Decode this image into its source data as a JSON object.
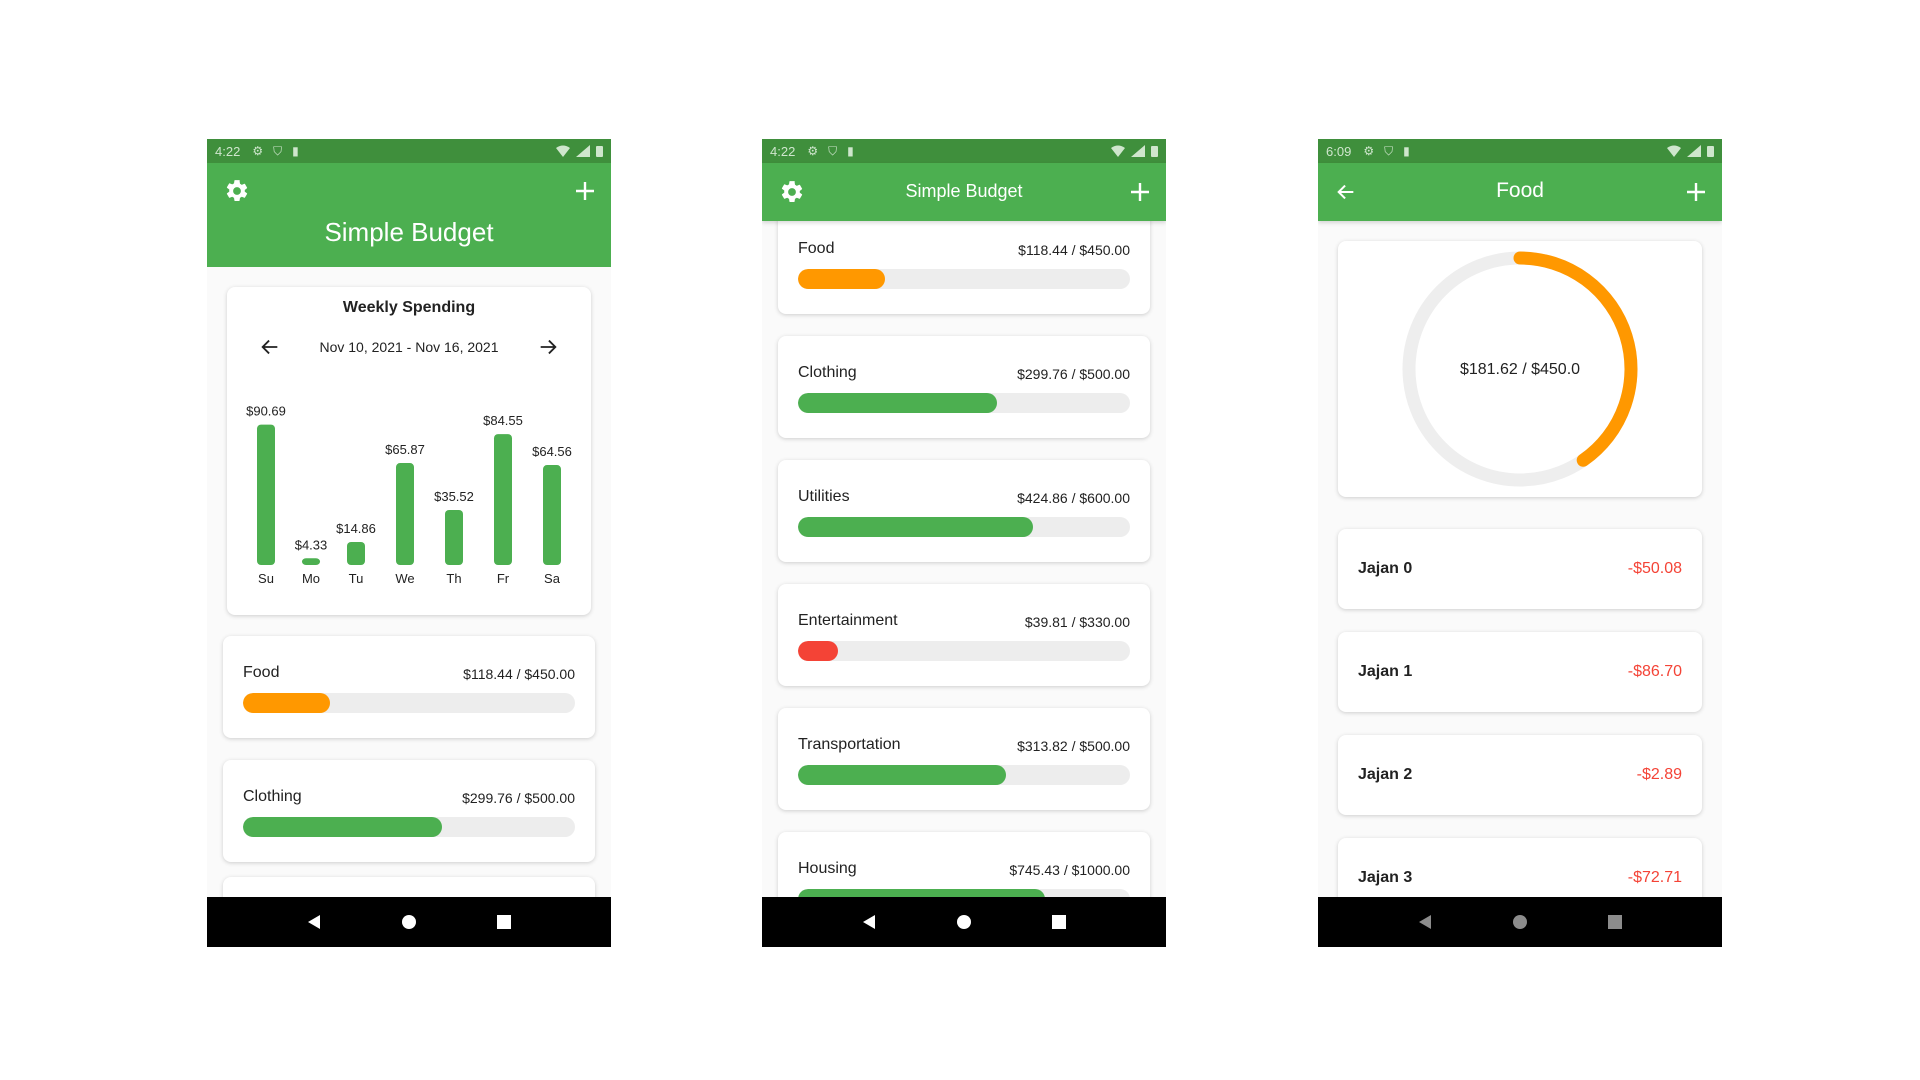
{
  "colors": {
    "green": "#4caf50",
    "status_green": "#3f8f3c",
    "orange": "#ff9800",
    "red": "#f44336",
    "track": "#ededed"
  },
  "screens": [
    {
      "status": {
        "time": "4:22"
      },
      "appbar": {
        "title": "Simple Budget",
        "left_icon": "gear-icon",
        "right_icon": "plus-icon"
      },
      "weekly": {
        "title": "Weekly Spending",
        "range": "Nov 10, 2021 - Nov 16, 2021",
        "chart_data": {
          "type": "bar",
          "categories": [
            "Su",
            "Mo",
            "Tu",
            "We",
            "Th",
            "Fr",
            "Sa"
          ],
          "values": [
            90.69,
            4.33,
            14.86,
            65.87,
            35.52,
            84.55,
            64.56
          ],
          "labels": [
            "$90.69",
            "$4.33",
            "$14.86",
            "$65.87",
            "$35.52",
            "$84.55",
            "$64.56"
          ],
          "ylim": [
            0,
            100
          ]
        }
      },
      "budgets": [
        {
          "name": "Food",
          "amount": "$118.44 / $450.00",
          "progress": 0.263,
          "color": "#ff9800"
        },
        {
          "name": "Clothing",
          "amount": "$299.76 / $500.00",
          "progress": 0.6,
          "color": "#4caf50"
        }
      ]
    },
    {
      "status": {
        "time": "4:22"
      },
      "appbar": {
        "title": "Simple Budget",
        "left_icon": "gear-icon",
        "right_icon": "plus-icon"
      },
      "budgets": [
        {
          "name": "Food",
          "amount": "$118.44 / $450.00",
          "progress": 0.263,
          "color": "#ff9800"
        },
        {
          "name": "Clothing",
          "amount": "$299.76 / $500.00",
          "progress": 0.6,
          "color": "#4caf50"
        },
        {
          "name": "Utilities",
          "amount": "$424.86 / $600.00",
          "progress": 0.708,
          "color": "#4caf50"
        },
        {
          "name": "Entertainment",
          "amount": "$39.81 / $330.00",
          "progress": 0.121,
          "color": "#f44336"
        },
        {
          "name": "Transportation",
          "amount": "$313.82 / $500.00",
          "progress": 0.628,
          "color": "#4caf50"
        },
        {
          "name": "Housing",
          "amount": "$745.43 / $1000.00",
          "progress": 0.745,
          "color": "#4caf50"
        }
      ]
    },
    {
      "status": {
        "time": "6:09"
      },
      "appbar": {
        "title": "Food",
        "left_icon": "back-arrow-icon",
        "right_icon": "plus-icon"
      },
      "donut": {
        "label": "$181.62 / $450.0",
        "progress": 0.4036,
        "color": "#ff9800",
        "track": "#eeeeee"
      },
      "transactions": [
        {
          "name": "Jajan 0",
          "amount": "-$50.08"
        },
        {
          "name": "Jajan 1",
          "amount": "-$86.70"
        },
        {
          "name": "Jajan 2",
          "amount": "-$2.89"
        },
        {
          "name": "Jajan 3",
          "amount": "-$72.71"
        }
      ]
    }
  ]
}
